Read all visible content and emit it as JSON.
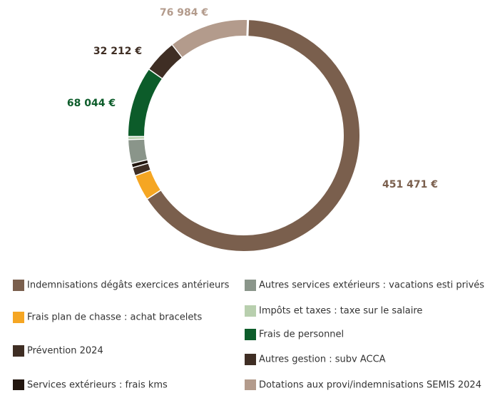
{
  "chart_data": {
    "type": "donut",
    "categories": [
      "Indemnisations dégâts exercices antérieurs",
      "Frais plan de chasse : achat bracelets",
      "Prévention 2024",
      "Services extérieurs : frais kms",
      "Autres services extérieurs : vacations esti privés",
      "Impôts et taxes : taxe sur le salaire",
      "Frais de personnel",
      "Autres gestion : subv ACCA",
      "Dotations aux provi/indemnisations SEMIS 2024"
    ],
    "values": [
      451471,
      25000,
      8000,
      4000,
      23000,
      3000,
      68044,
      32212,
      76984
    ],
    "value_labels": [
      "451 471 €",
      null,
      null,
      null,
      null,
      null,
      "68 044 €",
      "32 212 €",
      "76 984 €"
    ],
    "colors": [
      "#7a5f4d",
      "#f5a623",
      "#3f2e24",
      "#22160f",
      "#8a958a",
      "#b8cfae",
      "#0c5c2a",
      "#3f2e24",
      "#b39b8c"
    ],
    "legend": "bottom"
  }
}
